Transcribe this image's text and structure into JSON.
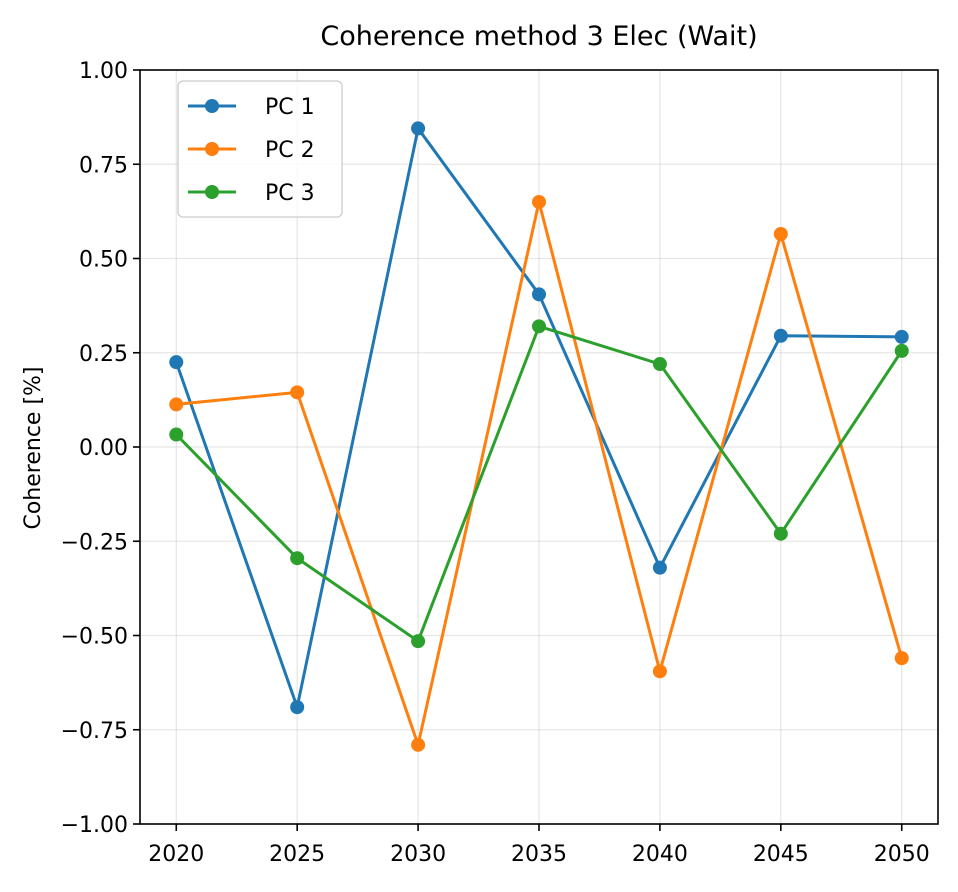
{
  "chart_data": {
    "type": "line",
    "title": "Coherence method 3 Elec (Wait)",
    "xlabel": "",
    "ylabel": "Coherence [%]",
    "x": [
      2020,
      2025,
      2030,
      2035,
      2040,
      2045,
      2050
    ],
    "xticks": [
      "2020",
      "2025",
      "2030",
      "2035",
      "2040",
      "2045",
      "2050"
    ],
    "xlim": [
      2018.5,
      2051.5
    ],
    "ylim": [
      -1.0,
      1.0
    ],
    "yticks": [
      -1.0,
      -0.75,
      -0.5,
      -0.25,
      0.0,
      0.25,
      0.5,
      0.75,
      1.0
    ],
    "ytick_labels": [
      "−1.00",
      "−0.75",
      "−0.50",
      "−0.25",
      "0.00",
      "0.25",
      "0.50",
      "0.75",
      "1.00"
    ],
    "grid": true,
    "legend": "top-left",
    "series": [
      {
        "name": "PC 1",
        "color": "#1f77b4",
        "values": [
          0.225,
          -0.69,
          0.845,
          0.405,
          -0.32,
          0.295,
          0.292
        ]
      },
      {
        "name": "PC 2",
        "color": "#ff7f0e",
        "values": [
          0.113,
          0.145,
          -0.79,
          0.65,
          -0.595,
          0.565,
          -0.56
        ]
      },
      {
        "name": "PC 3",
        "color": "#2ca02c",
        "values": [
          0.033,
          -0.295,
          -0.515,
          0.32,
          0.22,
          -0.23,
          0.255
        ]
      }
    ]
  }
}
